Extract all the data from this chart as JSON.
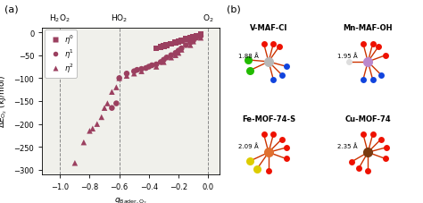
{
  "xlabel": "$q_{\\mathrm{Bader,O_2}}$",
  "ylabel": "$\\Delta E_{\\mathrm{O_2}}$ (kJ/mol)",
  "xlim": [
    -1.12,
    0.08
  ],
  "ylim": [
    -310,
    10
  ],
  "yticks": [
    0,
    -50,
    -100,
    -150,
    -200,
    -250,
    -300
  ],
  "xticks": [
    -1.0,
    -0.8,
    -0.6,
    -0.4,
    -0.2,
    0.0
  ],
  "vlines": [
    -1.0,
    -0.6,
    0.0
  ],
  "marker_color": "#9b4060",
  "background_color": "#f0f0eb",
  "eta0_x": [
    -0.05,
    -0.08,
    -0.1,
    -0.12,
    -0.15,
    -0.18,
    -0.2,
    -0.22,
    -0.25,
    -0.28,
    -0.3,
    -0.32,
    -0.35
  ],
  "eta0_y": [
    -5,
    -8,
    -10,
    -12,
    -15,
    -18,
    -20,
    -22,
    -25,
    -28,
    -30,
    -32,
    -35
  ],
  "eta1_x": [
    -0.05,
    -0.08,
    -0.1,
    -0.12,
    -0.15,
    -0.18,
    -0.2,
    -0.22,
    -0.25,
    -0.28,
    -0.3,
    -0.32,
    -0.35,
    -0.38,
    -0.4,
    -0.42,
    -0.45,
    -0.48,
    -0.5,
    -0.55,
    -0.6,
    -0.62,
    -0.65
  ],
  "eta1_y": [
    -8,
    -12,
    -18,
    -22,
    -28,
    -35,
    -40,
    -45,
    -50,
    -55,
    -60,
    -65,
    -70,
    -72,
    -75,
    -78,
    -80,
    -82,
    -85,
    -90,
    -100,
    -155,
    -165
  ],
  "eta2_x": [
    -0.05,
    -0.1,
    -0.12,
    -0.18,
    -0.2,
    -0.22,
    -0.25,
    -0.3,
    -0.35,
    -0.45,
    -0.5,
    -0.55,
    -0.6,
    -0.62,
    -0.65,
    -0.68,
    -0.7,
    -0.72,
    -0.75,
    -0.78,
    -0.8,
    -0.84,
    -0.9
  ],
  "eta2_y": [
    -12,
    -20,
    -28,
    -38,
    -45,
    -50,
    -55,
    -65,
    -75,
    -85,
    -90,
    -95,
    -100,
    -120,
    -130,
    -155,
    -165,
    -185,
    -200,
    -210,
    -215,
    -240,
    -285
  ],
  "mol_titles": [
    "V-MAF-Cl",
    "Mn-MAF-OH",
    "Fe-MOF-74-S",
    "Cu-MOF-74"
  ],
  "mol_distances": [
    "1.88 Å",
    "1.95 Å",
    "2.09 Å",
    "2.35 Å"
  ],
  "center_colors": [
    "#b0b0b0",
    "#bb88cc",
    "#e08030",
    "#7a3a10"
  ],
  "bond_color": "#cc3300"
}
